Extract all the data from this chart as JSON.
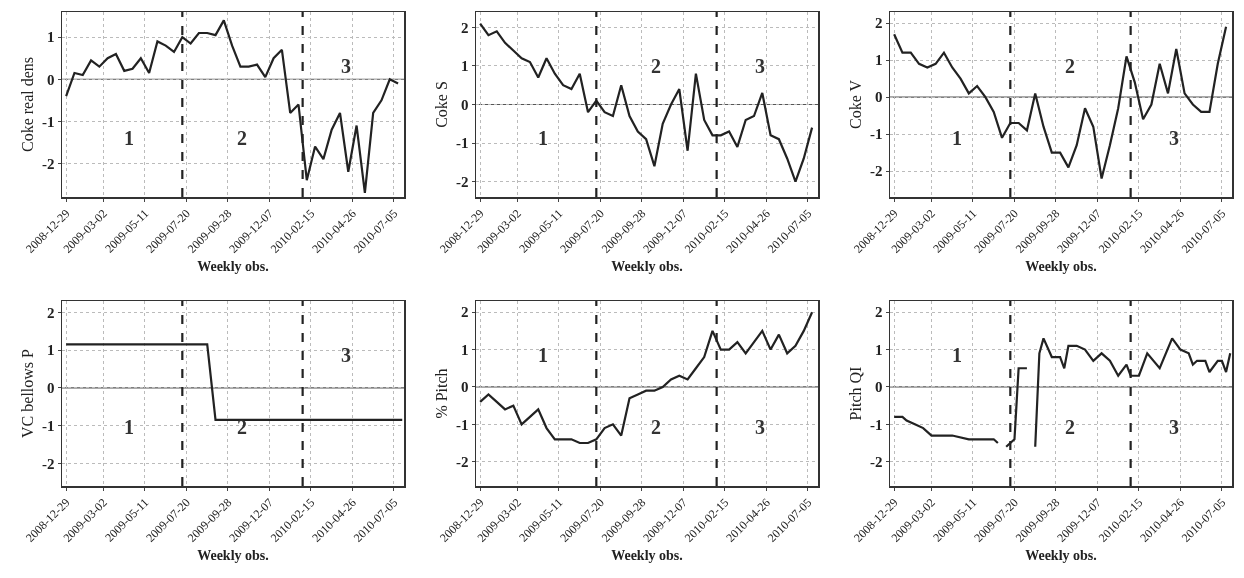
{
  "chart_data": [
    {
      "type": "line",
      "ylabel": "Coke real dens",
      "xlabel": "Weekly obs.",
      "grid": true,
      "marker": "none",
      "line_style": "solid",
      "xlim": [
        "2008-12-22",
        "2010-07-22"
      ],
      "ylim": [
        -2.8,
        1.6
      ],
      "yticks": [
        -2,
        -1,
        0,
        1
      ],
      "xticks": [
        {
          "value": "2008-12-29",
          "label": "2008-12-29"
        },
        {
          "value": "2009-03-02",
          "label": "2009-03-02"
        },
        {
          "value": "2009-05-11",
          "label": "2009-05-11"
        },
        {
          "value": "2009-07-20",
          "label": "2009-07-20"
        },
        {
          "value": "2009-09-28",
          "label": "2009-09-28"
        },
        {
          "value": "2009-12-07",
          "label": "2009-12-07"
        },
        {
          "value": "2010-02-15",
          "label": "2010-02-15"
        },
        {
          "value": "2010-04-26",
          "label": "2010-04-26"
        },
        {
          "value": "2010-07-05",
          "label": "2010-07-05"
        }
      ],
      "x": [
        "2008-12-29",
        "2009-01-12",
        "2009-01-26",
        "2009-02-09",
        "2009-02-23",
        "2009-03-09",
        "2009-03-23",
        "2009-04-06",
        "2009-04-20",
        "2009-05-04",
        "2009-05-18",
        "2009-06-01",
        "2009-06-15",
        "2009-06-29",
        "2009-07-13",
        "2009-07-27",
        "2009-08-10",
        "2009-08-24",
        "2009-09-07",
        "2009-09-21",
        "2009-10-05",
        "2009-10-19",
        "2009-11-02",
        "2009-11-16",
        "2009-11-30",
        "2009-12-14",
        "2009-12-28",
        "2010-01-11",
        "2010-01-25",
        "2010-02-08",
        "2010-02-22",
        "2010-03-08",
        "2010-03-22",
        "2010-04-05",
        "2010-04-19",
        "2010-05-03",
        "2010-05-17",
        "2010-05-31",
        "2010-06-14",
        "2010-06-28",
        "2010-07-12"
      ],
      "series": [
        {
          "color": "#222222",
          "values": [
            -0.4,
            0.15,
            0.1,
            0.45,
            0.3,
            0.5,
            0.6,
            0.2,
            0.25,
            0.5,
            0.15,
            0.9,
            0.8,
            0.65,
            1.0,
            0.85,
            1.1,
            1.1,
            1.05,
            1.4,
            0.8,
            0.3,
            0.3,
            0.35,
            0.05,
            0.5,
            0.7,
            -0.8,
            -0.6,
            -2.4,
            -1.6,
            -1.9,
            -1.2,
            -0.8,
            -2.2,
            -1.1,
            -2.7,
            -0.8,
            -0.5,
            0.0,
            -0.1
          ]
        }
      ],
      "ref_lines": [
        {
          "axis": "y",
          "value": 0,
          "color": "#555555",
          "line_style": "solid"
        },
        {
          "axis": "x",
          "value": "2009-07-13",
          "color": "#222222",
          "line_style": "dashed"
        },
        {
          "axis": "x",
          "value": "2010-02-01",
          "color": "#222222",
          "line_style": "dashed"
        }
      ],
      "annotations": [
        "1",
        "2",
        "3"
      ]
    },
    {
      "type": "line",
      "ylabel": "Coke S",
      "xlabel": "Weekly obs.",
      "grid": true,
      "marker": "none",
      "line_style": "solid",
      "xlim": [
        "2008-12-22",
        "2010-07-22"
      ],
      "ylim": [
        -2.4,
        2.4
      ],
      "yticks": [
        -2,
        -1,
        0,
        1,
        2
      ],
      "xticks": [
        {
          "value": "2008-12-29",
          "label": "2008-12-29"
        },
        {
          "value": "2009-03-02",
          "label": "2009-03-02"
        },
        {
          "value": "2009-05-11",
          "label": "2009-05-11"
        },
        {
          "value": "2009-07-20",
          "label": "2009-07-20"
        },
        {
          "value": "2009-09-28",
          "label": "2009-09-28"
        },
        {
          "value": "2009-12-07",
          "label": "2009-12-07"
        },
        {
          "value": "2010-02-15",
          "label": "2010-02-15"
        },
        {
          "value": "2010-04-26",
          "label": "2010-04-26"
        },
        {
          "value": "2010-07-05",
          "label": "2010-07-05"
        }
      ],
      "x": [
        "2008-12-29",
        "2009-01-12",
        "2009-01-26",
        "2009-02-09",
        "2009-02-23",
        "2009-03-09",
        "2009-03-23",
        "2009-04-06",
        "2009-04-20",
        "2009-05-04",
        "2009-05-18",
        "2009-06-01",
        "2009-06-15",
        "2009-06-29",
        "2009-07-13",
        "2009-07-27",
        "2009-08-10",
        "2009-08-24",
        "2009-09-07",
        "2009-09-21",
        "2009-10-05",
        "2009-10-19",
        "2009-11-02",
        "2009-11-16",
        "2009-11-30",
        "2009-12-14",
        "2009-12-28",
        "2010-01-11",
        "2010-01-25",
        "2010-02-08",
        "2010-02-22",
        "2010-03-08",
        "2010-03-22",
        "2010-04-05",
        "2010-04-19",
        "2010-05-03",
        "2010-05-17",
        "2010-05-31",
        "2010-06-14",
        "2010-06-28",
        "2010-07-12"
      ],
      "series": [
        {
          "color": "#222222",
          "values": [
            2.1,
            1.8,
            1.9,
            1.6,
            1.4,
            1.2,
            1.1,
            0.7,
            1.2,
            0.8,
            0.5,
            0.4,
            0.8,
            -0.2,
            0.1,
            -0.2,
            -0.3,
            0.5,
            -0.3,
            -0.7,
            -0.9,
            -1.6,
            -0.5,
            0.0,
            0.4,
            -1.2,
            0.8,
            -0.4,
            -0.8,
            -0.8,
            -0.7,
            -1.1,
            -0.4,
            -0.3,
            0.3,
            -0.8,
            -0.9,
            -1.4,
            -2.0,
            -1.4,
            -0.6
          ]
        }
      ],
      "ref_lines": [
        {
          "axis": "y",
          "value": 0,
          "color": "#555555",
          "line_style": "solid"
        },
        {
          "axis": "x",
          "value": "2009-07-13",
          "color": "#222222",
          "line_style": "dashed"
        },
        {
          "axis": "x",
          "value": "2010-02-01",
          "color": "#222222",
          "line_style": "dashed"
        }
      ],
      "annotations": [
        "1",
        "2",
        "3"
      ]
    },
    {
      "type": "line",
      "ylabel": "Coke V",
      "xlabel": "Weekly obs.",
      "grid": true,
      "marker": "none",
      "line_style": "solid",
      "xlim": [
        "2008-12-22",
        "2010-07-22"
      ],
      "ylim": [
        -2.7,
        2.3
      ],
      "yticks": [
        -2,
        -1,
        0,
        1,
        2
      ],
      "xticks": [
        {
          "value": "2008-12-29",
          "label": "2008-12-29"
        },
        {
          "value": "2009-03-02",
          "label": "2009-03-02"
        },
        {
          "value": "2009-05-11",
          "label": "2009-05-11"
        },
        {
          "value": "2009-07-20",
          "label": "2009-07-20"
        },
        {
          "value": "2009-09-28",
          "label": "2009-09-28"
        },
        {
          "value": "2009-12-07",
          "label": "2009-12-07"
        },
        {
          "value": "2010-02-15",
          "label": "2010-02-15"
        },
        {
          "value": "2010-04-26",
          "label": "2010-04-26"
        },
        {
          "value": "2010-07-05",
          "label": "2010-07-05"
        }
      ],
      "x": [
        "2008-12-29",
        "2009-01-12",
        "2009-01-26",
        "2009-02-09",
        "2009-02-23",
        "2009-03-09",
        "2009-03-23",
        "2009-04-06",
        "2009-04-20",
        "2009-05-04",
        "2009-05-18",
        "2009-06-01",
        "2009-06-15",
        "2009-06-29",
        "2009-07-13",
        "2009-07-27",
        "2009-08-10",
        "2009-08-24",
        "2009-09-07",
        "2009-09-21",
        "2009-10-05",
        "2009-10-19",
        "2009-11-02",
        "2009-11-16",
        "2009-11-30",
        "2009-12-14",
        "2009-12-28",
        "2010-01-11",
        "2010-01-25",
        "2010-02-08",
        "2010-02-22",
        "2010-03-08",
        "2010-03-22",
        "2010-04-05",
        "2010-04-19",
        "2010-05-03",
        "2010-05-17",
        "2010-05-31",
        "2010-06-14",
        "2010-06-28",
        "2010-07-12"
      ],
      "series": [
        {
          "color": "#222222",
          "values": [
            1.7,
            1.2,
            1.2,
            0.9,
            0.8,
            0.9,
            1.2,
            0.8,
            0.5,
            0.1,
            0.3,
            0.0,
            -0.4,
            -1.1,
            -0.7,
            -0.7,
            -0.9,
            0.1,
            -0.8,
            -1.5,
            -1.5,
            -1.9,
            -1.3,
            -0.3,
            -0.8,
            -2.2,
            -1.3,
            -0.3,
            1.1,
            0.4,
            -0.6,
            -0.2,
            0.9,
            0.1,
            1.3,
            0.1,
            -0.2,
            -0.4,
            -0.4,
            0.9,
            1.9
          ]
        }
      ],
      "ref_lines": [
        {
          "axis": "y",
          "value": 0,
          "color": "#555555",
          "line_style": "solid"
        },
        {
          "axis": "x",
          "value": "2009-07-13",
          "color": "#222222",
          "line_style": "dashed"
        },
        {
          "axis": "x",
          "value": "2010-02-01",
          "color": "#222222",
          "line_style": "dashed"
        }
      ],
      "annotations": [
        "1",
        "2",
        "3"
      ]
    },
    {
      "type": "line",
      "ylabel": "VC bellows P",
      "xlabel": "Weekly obs.",
      "grid": true,
      "marker": "none",
      "line_style": "solid",
      "xlim": [
        "2008-12-22",
        "2010-07-22"
      ],
      "ylim": [
        -2.6,
        2.3
      ],
      "yticks": [
        -2,
        -1,
        0,
        1,
        2
      ],
      "xticks": [
        {
          "value": "2008-12-29",
          "label": "2008-12-29"
        },
        {
          "value": "2009-03-02",
          "label": "2009-03-02"
        },
        {
          "value": "2009-05-11",
          "label": "2009-05-11"
        },
        {
          "value": "2009-07-20",
          "label": "2009-07-20"
        },
        {
          "value": "2009-09-28",
          "label": "2009-09-28"
        },
        {
          "value": "2009-12-07",
          "label": "2009-12-07"
        },
        {
          "value": "2010-02-15",
          "label": "2010-02-15"
        },
        {
          "value": "2010-04-26",
          "label": "2010-04-26"
        },
        {
          "value": "2010-07-05",
          "label": "2010-07-05"
        }
      ],
      "x": [
        "2008-12-29",
        "2009-08-24",
        "2009-09-07",
        "2010-07-19"
      ],
      "series": [
        {
          "color": "#222222",
          "values": [
            1.15,
            1.15,
            -0.85,
            -0.85
          ]
        }
      ],
      "ref_lines": [
        {
          "axis": "y",
          "value": 0,
          "color": "#555555",
          "line_style": "solid"
        },
        {
          "axis": "x",
          "value": "2009-07-13",
          "color": "#222222",
          "line_style": "dashed"
        },
        {
          "axis": "x",
          "value": "2010-02-01",
          "color": "#222222",
          "line_style": "dashed"
        }
      ],
      "annotations": [
        "1",
        "2",
        "3"
      ]
    },
    {
      "type": "line",
      "ylabel": "% Pitch",
      "xlabel": "Weekly obs.",
      "grid": true,
      "marker": "none",
      "line_style": "solid",
      "xlim": [
        "2008-12-22",
        "2010-07-22"
      ],
      "ylim": [
        -2.65,
        2.3
      ],
      "yticks": [
        -2,
        -1,
        0,
        1,
        2
      ],
      "xticks": [
        {
          "value": "2008-12-29",
          "label": "2008-12-29"
        },
        {
          "value": "2009-03-02",
          "label": "2009-03-02"
        },
        {
          "value": "2009-05-11",
          "label": "2009-05-11"
        },
        {
          "value": "2009-07-20",
          "label": "2009-07-20"
        },
        {
          "value": "2009-09-28",
          "label": "2009-09-28"
        },
        {
          "value": "2009-12-07",
          "label": "2009-12-07"
        },
        {
          "value": "2010-02-15",
          "label": "2010-02-15"
        },
        {
          "value": "2010-04-26",
          "label": "2010-04-26"
        },
        {
          "value": "2010-07-05",
          "label": "2010-07-05"
        }
      ],
      "x": [
        "2008-12-29",
        "2009-01-12",
        "2009-01-26",
        "2009-02-09",
        "2009-02-23",
        "2009-03-09",
        "2009-03-23",
        "2009-04-06",
        "2009-04-20",
        "2009-05-04",
        "2009-05-18",
        "2009-06-01",
        "2009-06-15",
        "2009-06-29",
        "2009-07-13",
        "2009-07-27",
        "2009-08-10",
        "2009-08-24",
        "2009-09-07",
        "2009-09-21",
        "2009-10-05",
        "2009-10-19",
        "2009-11-02",
        "2009-11-16",
        "2009-11-30",
        "2009-12-14",
        "2009-12-28",
        "2010-01-11",
        "2010-01-25",
        "2010-02-08",
        "2010-02-22",
        "2010-03-08",
        "2010-03-22",
        "2010-04-05",
        "2010-04-19",
        "2010-05-03",
        "2010-05-17",
        "2010-05-31",
        "2010-06-14",
        "2010-06-28",
        "2010-07-12"
      ],
      "series": [
        {
          "color": "#222222",
          "values": [
            -0.4,
            -0.2,
            -0.4,
            -0.6,
            -0.5,
            -1.0,
            -0.8,
            -0.6,
            -1.1,
            -1.4,
            -1.4,
            -1.4,
            -1.5,
            -1.5,
            -1.4,
            -1.1,
            -1.0,
            -1.3,
            -0.3,
            -0.2,
            -0.1,
            -0.1,
            0.0,
            0.2,
            0.3,
            0.2,
            0.5,
            0.8,
            1.5,
            1.0,
            1.0,
            1.2,
            0.9,
            1.2,
            1.5,
            1.0,
            1.4,
            0.9,
            1.1,
            1.5,
            2.0
          ]
        }
      ],
      "ref_lines": [
        {
          "axis": "y",
          "value": 0,
          "color": "#555555",
          "line_style": "solid"
        },
        {
          "axis": "x",
          "value": "2009-07-13",
          "color": "#222222",
          "line_style": "dashed"
        },
        {
          "axis": "x",
          "value": "2010-02-01",
          "color": "#222222",
          "line_style": "dashed"
        }
      ],
      "annotations": [
        "1",
        "2",
        "3"
      ]
    },
    {
      "type": "line",
      "ylabel": "Pitch QI",
      "xlabel": "Weekly obs.",
      "grid": true,
      "marker": "none",
      "line_style": "solid",
      "xlim": [
        "2008-12-22",
        "2010-07-22"
      ],
      "ylim": [
        -2.65,
        2.3
      ],
      "yticks": [
        -2,
        -1,
        0,
        1,
        2
      ],
      "xticks": [
        {
          "value": "2008-12-29",
          "label": "2008-12-29"
        },
        {
          "value": "2009-03-02",
          "label": "2009-03-02"
        },
        {
          "value": "2009-05-11",
          "label": "2009-05-11"
        },
        {
          "value": "2009-07-20",
          "label": "2009-07-20"
        },
        {
          "value": "2009-09-28",
          "label": "2009-09-28"
        },
        {
          "value": "2009-12-07",
          "label": "2009-12-07"
        },
        {
          "value": "2010-02-15",
          "label": "2010-02-15"
        },
        {
          "value": "2010-04-26",
          "label": "2010-04-26"
        },
        {
          "value": "2010-07-05",
          "label": "2010-07-05"
        }
      ],
      "x": [
        "2008-12-29",
        "2009-01-12",
        "2009-01-19",
        "2009-02-02",
        "2009-02-16",
        "2009-03-02",
        "2009-03-23",
        "2009-04-06",
        "2009-05-04",
        "2009-05-25",
        "2009-06-15",
        "2009-06-22",
        "2009-06-29",
        "2009-07-06",
        "2009-07-20",
        "2009-07-27",
        "2009-08-10",
        "2009-08-17",
        "2009-08-24",
        "2009-08-31",
        "2009-09-07",
        "2009-09-21",
        "2009-10-05",
        "2009-10-12",
        "2009-10-19",
        "2009-11-02",
        "2009-11-16",
        "2009-11-30",
        "2009-12-14",
        "2009-12-28",
        "2010-01-11",
        "2010-01-25",
        "2010-02-01",
        "2010-02-15",
        "2010-03-01",
        "2010-03-22",
        "2010-04-12",
        "2010-04-26",
        "2010-05-10",
        "2010-05-17",
        "2010-05-24",
        "2010-06-07",
        "2010-06-14",
        "2010-06-28",
        "2010-07-05",
        "2010-07-12",
        "2010-07-19"
      ],
      "series": [
        {
          "color": "#222222",
          "values": [
            -0.8,
            -0.8,
            -0.9,
            -1.0,
            -1.1,
            -1.3,
            -1.3,
            -1.3,
            -1.4,
            -1.4,
            -1.4,
            -1.5,
            null,
            -1.6,
            -1.4,
            0.5,
            0.5,
            null,
            -1.6,
            0.9,
            1.3,
            0.8,
            0.8,
            0.5,
            1.1,
            1.1,
            1.0,
            0.7,
            0.9,
            0.7,
            0.3,
            0.6,
            0.3,
            0.3,
            0.9,
            0.5,
            1.3,
            1.0,
            0.9,
            0.6,
            0.7,
            0.7,
            0.4,
            0.7,
            0.7,
            0.4,
            0.9
          ]
        }
      ],
      "ref_lines": [
        {
          "axis": "y",
          "value": 0,
          "color": "#555555",
          "line_style": "solid"
        },
        {
          "axis": "x",
          "value": "2009-07-13",
          "color": "#222222",
          "line_style": "dashed"
        },
        {
          "axis": "x",
          "value": "2010-02-01",
          "color": "#222222",
          "line_style": "dashed"
        }
      ],
      "annotations": [
        "1",
        "2",
        "3"
      ]
    }
  ]
}
